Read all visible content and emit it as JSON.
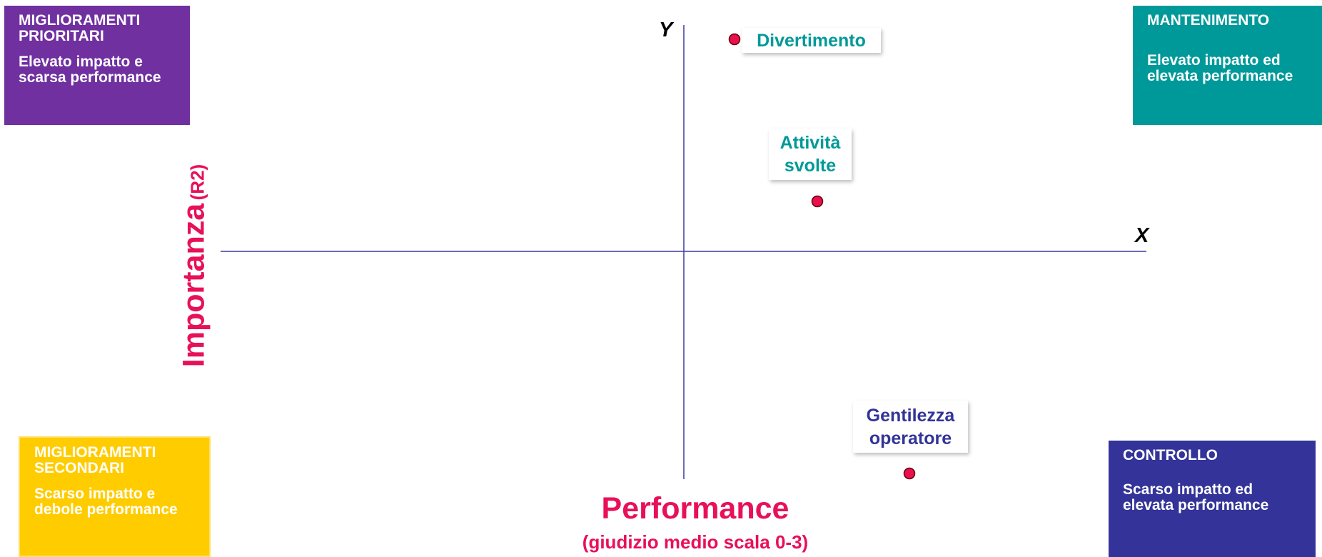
{
  "quadrants": {
    "top_left": {
      "title": "MIGLIORAMENTI PRIORITARI",
      "text": "Elevato impatto e scarsa performance"
    },
    "top_right": {
      "title": "MANTENIMENTO",
      "text": "Elevato impatto ed elevata performance"
    },
    "bottom_left": {
      "title": "MIGLIORAMENTI SECONDARI",
      "text": "Scarso impatto e debole performance"
    },
    "bottom_right": {
      "title": "CONTROLLO",
      "text": "Scarso impatto ed elevata performance"
    }
  },
  "axes": {
    "y": "Y",
    "x": "X",
    "y_title": "Importanza",
    "y_title_note": "(R2)",
    "x_title": "Performance",
    "x_subtitle": "(giudizio medio scala 0-3)"
  },
  "points": [
    {
      "label": "Divertimento"
    },
    {
      "label": "Attività svolte"
    },
    {
      "label": "Gentilezza operatore"
    }
  ]
}
